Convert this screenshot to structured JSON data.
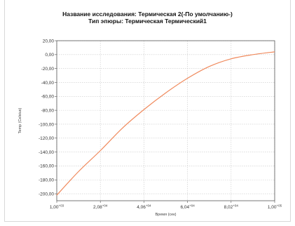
{
  "chart_data": {
    "type": "line",
    "title": "Название исследования: Термическая 2(-По умолчанию-)",
    "subtitle": "Тип эпюры: Термическая Термический1",
    "xlabel": "Время (сек)",
    "ylabel": "Temp (Celsius)",
    "xscale": "linear",
    "xlim": [
      1.0,
      10.0
    ],
    "ylim": [
      -210,
      20
    ],
    "grid": true,
    "legend": "none",
    "line_color": "#f08a5d",
    "x_ticks": [
      {
        "value": 1.0,
        "mantissa": "1,00",
        "exponent": "+03"
      },
      {
        "value": 2.8,
        "mantissa": "2,08",
        "exponent": "+04"
      },
      {
        "value": 4.6,
        "mantissa": "4,06",
        "exponent": "+04"
      },
      {
        "value": 6.4,
        "mantissa": "6,04",
        "exponent": "+04"
      },
      {
        "value": 8.2,
        "mantissa": "8,02",
        "exponent": "+04"
      },
      {
        "value": 10.0,
        "mantissa": "1,00",
        "exponent": "+05"
      }
    ],
    "y_ticks": [
      {
        "value": 20,
        "label": "20,00"
      },
      {
        "value": 0,
        "label": "0,00"
      },
      {
        "value": -20,
        "label": "-20,00"
      },
      {
        "value": -40,
        "label": "-40,00"
      },
      {
        "value": -60,
        "label": "-60,00"
      },
      {
        "value": -80,
        "label": "-80,00"
      },
      {
        "value": -100,
        "label": "-100,00"
      },
      {
        "value": -120,
        "label": "-120,00"
      },
      {
        "value": -140,
        "label": "-140,00"
      },
      {
        "value": -160,
        "label": "-160,00"
      },
      {
        "value": -180,
        "label": "-180,00"
      },
      {
        "value": -200,
        "label": "-200,00"
      }
    ],
    "series": [
      {
        "x": [
          1.0,
          1.9,
          2.8,
          3.7,
          4.6,
          5.5,
          6.4,
          7.3,
          8.2,
          9.1,
          10.0
        ],
        "y": [
          -202,
          -168,
          -138,
          -106,
          -79,
          -55,
          -34,
          -17,
          -6,
          0,
          4
        ]
      }
    ]
  }
}
